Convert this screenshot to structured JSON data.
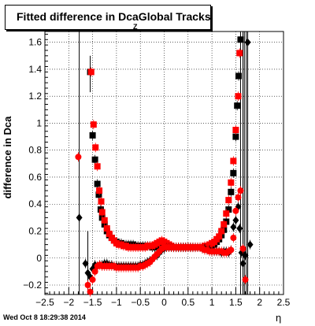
{
  "title": "Fitted difference in DcaGlobal Tracks",
  "title_subscript": "Z",
  "footer": "Wed Oct  8 18:29:38 2014",
  "chart_data": {
    "type": "scatter",
    "title": "Fitted difference in DcaGlobal Tracks",
    "xlabel": "η",
    "ylabel": "difference in Dca",
    "xlim": [
      -2.5,
      2.5
    ],
    "ylim": [
      -0.27,
      1.68
    ],
    "grid": true,
    "x_ticks": [
      -2.5,
      -2,
      -1.5,
      -1,
      -0.5,
      0,
      0.5,
      1,
      1.5,
      2,
      2.5
    ],
    "x_tick_labels": [
      "−2.5",
      "−2",
      "−1.5",
      "−1",
      "−0.5",
      "0",
      "0.5",
      "1",
      "1.5",
      "2",
      "2.5"
    ],
    "y_ticks": [
      -0.2,
      0,
      0.2,
      0.4,
      0.6,
      0.8,
      1,
      1.2,
      1.4,
      1.6
    ],
    "y_tick_labels": [
      "−0.2",
      "0",
      "0.2",
      "0.4",
      "0.6",
      "0.8",
      "1",
      "1.2",
      "1.4",
      "1.6"
    ],
    "series": [
      {
        "marker": "square",
        "color": "#000000",
        "points": [
          [
            -1.55,
            1.38
          ],
          [
            -1.5,
            0.91
          ],
          [
            -1.45,
            0.73
          ],
          [
            -1.4,
            0.55
          ],
          [
            -1.37,
            0.47
          ],
          [
            -1.33,
            0.36
          ],
          [
            -1.3,
            0.3
          ],
          [
            -1.25,
            0.25
          ],
          [
            -1.2,
            0.2
          ],
          [
            -1.15,
            0.17
          ],
          [
            -1.1,
            0.15
          ],
          [
            -1.05,
            0.13
          ],
          [
            -1.0,
            0.12
          ],
          [
            -0.95,
            0.11
          ],
          [
            -0.9,
            0.11
          ],
          [
            -0.85,
            0.1
          ],
          [
            -0.8,
            0.1
          ],
          [
            -0.75,
            0.1
          ],
          [
            -0.7,
            0.1
          ],
          [
            -0.65,
            0.1
          ],
          [
            -0.6,
            0.09
          ],
          [
            -0.55,
            0.09
          ],
          [
            -0.5,
            0.09
          ],
          [
            -0.45,
            0.09
          ],
          [
            -0.4,
            0.09
          ],
          [
            -0.35,
            0.09
          ],
          [
            -0.3,
            0.09
          ],
          [
            -0.25,
            0.08
          ],
          [
            -0.2,
            0.08
          ],
          [
            -0.15,
            0.08
          ],
          [
            -0.1,
            0.08
          ],
          [
            -0.05,
            0.08
          ],
          [
            0.0,
            0.08
          ],
          [
            0.05,
            0.08
          ],
          [
            0.1,
            0.08
          ],
          [
            0.15,
            0.08
          ],
          [
            0.2,
            0.08
          ],
          [
            0.25,
            0.08
          ],
          [
            0.3,
            0.08
          ],
          [
            0.35,
            0.08
          ],
          [
            0.4,
            0.08
          ],
          [
            0.45,
            0.08
          ],
          [
            0.5,
            0.08
          ],
          [
            0.55,
            0.08
          ],
          [
            0.6,
            0.08
          ],
          [
            0.65,
            0.08
          ],
          [
            0.7,
            0.08
          ],
          [
            0.75,
            0.08
          ],
          [
            0.8,
            0.08
          ],
          [
            0.85,
            0.08
          ],
          [
            0.9,
            0.08
          ],
          [
            0.95,
            0.08
          ],
          [
            1.0,
            0.09
          ],
          [
            1.05,
            0.1
          ],
          [
            1.1,
            0.12
          ],
          [
            1.15,
            0.14
          ],
          [
            1.2,
            0.17
          ],
          [
            1.25,
            0.21
          ],
          [
            1.3,
            0.27
          ],
          [
            1.35,
            0.36
          ],
          [
            1.4,
            0.49
          ],
          [
            1.45,
            0.63
          ],
          [
            1.5,
            0.9
          ],
          [
            1.53,
            1.13
          ],
          [
            1.56,
            1.35
          ],
          [
            1.6,
            1.62
          ]
        ]
      },
      {
        "marker": "square",
        "color": "#ff0000",
        "points": [
          [
            -1.53,
            1.38
          ],
          [
            -1.48,
            0.99
          ],
          [
            -1.44,
            0.82
          ],
          [
            -1.4,
            0.68
          ],
          [
            -1.36,
            0.5
          ],
          [
            -1.32,
            0.42
          ],
          [
            -1.3,
            0.34
          ],
          [
            -1.25,
            0.28
          ],
          [
            -1.2,
            0.22
          ],
          [
            -1.15,
            0.18
          ],
          [
            -1.1,
            0.15
          ],
          [
            -1.05,
            0.13
          ],
          [
            -1.0,
            0.11
          ],
          [
            -0.95,
            0.1
          ],
          [
            -0.9,
            0.1
          ],
          [
            -0.85,
            0.09
          ],
          [
            -0.8,
            0.09
          ],
          [
            -0.75,
            0.08
          ],
          [
            -0.7,
            0.08
          ],
          [
            -0.65,
            0.08
          ],
          [
            -0.6,
            0.08
          ],
          [
            -0.55,
            0.08
          ],
          [
            -0.5,
            0.08
          ],
          [
            -0.45,
            0.08
          ],
          [
            -0.4,
            0.08
          ],
          [
            -0.35,
            0.09
          ],
          [
            -0.3,
            0.09
          ],
          [
            -0.25,
            0.09
          ],
          [
            -0.2,
            0.1
          ],
          [
            -0.15,
            0.11
          ],
          [
            -0.1,
            0.12
          ],
          [
            -0.05,
            0.13
          ],
          [
            0.0,
            0.12
          ],
          [
            0.05,
            0.11
          ],
          [
            0.1,
            0.1
          ],
          [
            0.15,
            0.09
          ],
          [
            0.2,
            0.08
          ],
          [
            0.25,
            0.08
          ],
          [
            0.3,
            0.08
          ],
          [
            0.35,
            0.08
          ],
          [
            0.4,
            0.08
          ],
          [
            0.45,
            0.08
          ],
          [
            0.5,
            0.08
          ],
          [
            0.55,
            0.08
          ],
          [
            0.6,
            0.08
          ],
          [
            0.65,
            0.08
          ],
          [
            0.7,
            0.08
          ],
          [
            0.75,
            0.08
          ],
          [
            0.8,
            0.08
          ],
          [
            0.85,
            0.09
          ],
          [
            0.9,
            0.09
          ],
          [
            0.95,
            0.1
          ],
          [
            1.0,
            0.11
          ],
          [
            1.05,
            0.12
          ],
          [
            1.1,
            0.14
          ],
          [
            1.15,
            0.16
          ],
          [
            1.2,
            0.2
          ],
          [
            1.25,
            0.25
          ],
          [
            1.3,
            0.33
          ],
          [
            1.35,
            0.43
          ],
          [
            1.4,
            0.56
          ],
          [
            1.45,
            0.72
          ],
          [
            1.5,
            0.95
          ],
          [
            1.55,
            1.2
          ],
          [
            1.58,
            1.52
          ]
        ]
      },
      {
        "marker": "diamond",
        "color": "#000000",
        "points": [
          [
            -1.78,
            0.3
          ],
          [
            -1.65,
            -0.04
          ],
          [
            -1.6,
            -0.11
          ],
          [
            -1.55,
            -0.14
          ],
          [
            -1.5,
            -0.08
          ],
          [
            -1.45,
            -0.05
          ],
          [
            -1.4,
            -0.06
          ],
          [
            -1.35,
            -0.05
          ],
          [
            -1.3,
            -0.05
          ],
          [
            -1.25,
            -0.04
          ],
          [
            -1.2,
            -0.04
          ],
          [
            -1.15,
            -0.05
          ],
          [
            -1.1,
            -0.05
          ],
          [
            -1.05,
            -0.06
          ],
          [
            -1.0,
            -0.06
          ],
          [
            -0.95,
            -0.06
          ],
          [
            -0.9,
            -0.06
          ],
          [
            -0.85,
            -0.06
          ],
          [
            -0.8,
            -0.06
          ],
          [
            -0.75,
            -0.06
          ],
          [
            -0.7,
            -0.06
          ],
          [
            -0.65,
            -0.06
          ],
          [
            -0.6,
            -0.06
          ],
          [
            -0.55,
            -0.06
          ],
          [
            -0.5,
            -0.05
          ],
          [
            -0.45,
            -0.05
          ],
          [
            -0.4,
            -0.04
          ],
          [
            -0.35,
            -0.03
          ],
          [
            -0.3,
            -0.02
          ],
          [
            -0.25,
            -0.01
          ],
          [
            -0.2,
            0.01
          ],
          [
            -0.15,
            0.02
          ],
          [
            -0.1,
            0.04
          ],
          [
            -0.05,
            0.06
          ],
          [
            0.0,
            0.07
          ],
          [
            0.05,
            0.08
          ],
          [
            0.1,
            0.08
          ],
          [
            0.15,
            0.08
          ],
          [
            0.2,
            0.08
          ],
          [
            0.25,
            0.08
          ],
          [
            0.3,
            0.08
          ],
          [
            0.35,
            0.08
          ],
          [
            0.4,
            0.08
          ],
          [
            0.45,
            0.08
          ],
          [
            0.5,
            0.08
          ],
          [
            0.55,
            0.08
          ],
          [
            0.6,
            0.08
          ],
          [
            0.65,
            0.08
          ],
          [
            0.7,
            0.08
          ],
          [
            0.75,
            0.08
          ],
          [
            0.8,
            0.07
          ],
          [
            0.85,
            0.07
          ],
          [
            0.9,
            0.06
          ],
          [
            0.95,
            0.06
          ],
          [
            1.0,
            0.05
          ],
          [
            1.05,
            0.05
          ],
          [
            1.1,
            0.05
          ],
          [
            1.15,
            0.05
          ],
          [
            1.2,
            0.04
          ],
          [
            1.25,
            0.05
          ],
          [
            1.3,
            0.05
          ],
          [
            1.35,
            0.04
          ],
          [
            1.4,
            0.06
          ],
          [
            1.45,
            0.23
          ],
          [
            1.5,
            0.28
          ],
          [
            1.55,
            0.38
          ],
          [
            1.58,
            0.22
          ],
          [
            1.62,
            0.04
          ],
          [
            1.65,
            -0.04
          ],
          [
            1.7,
            0.02
          ],
          [
            1.75,
            1.6
          ],
          [
            1.8,
            0.1
          ]
        ]
      },
      {
        "marker": "circle",
        "color": "#ff0000",
        "points": [
          [
            -1.8,
            0.75
          ],
          [
            -1.6,
            -0.2
          ],
          [
            -1.55,
            -0.25
          ],
          [
            -1.5,
            -0.16
          ],
          [
            -1.45,
            -0.1
          ],
          [
            -1.4,
            -0.06
          ],
          [
            -1.35,
            -0.05
          ],
          [
            -1.3,
            -0.06
          ],
          [
            -1.25,
            -0.06
          ],
          [
            -1.2,
            -0.06
          ],
          [
            -1.15,
            -0.06
          ],
          [
            -1.1,
            -0.06
          ],
          [
            -1.05,
            -0.06
          ],
          [
            -1.0,
            -0.07
          ],
          [
            -0.95,
            -0.07
          ],
          [
            -0.9,
            -0.07
          ],
          [
            -0.85,
            -0.07
          ],
          [
            -0.8,
            -0.07
          ],
          [
            -0.75,
            -0.07
          ],
          [
            -0.7,
            -0.07
          ],
          [
            -0.65,
            -0.07
          ],
          [
            -0.6,
            -0.07
          ],
          [
            -0.55,
            -0.07
          ],
          [
            -0.5,
            -0.06
          ],
          [
            -0.45,
            -0.06
          ],
          [
            -0.4,
            -0.05
          ],
          [
            -0.35,
            -0.04
          ],
          [
            -0.3,
            -0.03
          ],
          [
            -0.25,
            -0.01
          ],
          [
            -0.2,
            0.01
          ],
          [
            -0.15,
            0.03
          ],
          [
            -0.1,
            0.05
          ],
          [
            -0.05,
            0.07
          ],
          [
            0.0,
            0.08
          ],
          [
            0.05,
            0.08
          ],
          [
            0.1,
            0.08
          ],
          [
            0.15,
            0.08
          ],
          [
            0.2,
            0.08
          ],
          [
            0.25,
            0.08
          ],
          [
            0.3,
            0.08
          ],
          [
            0.35,
            0.08
          ],
          [
            0.4,
            0.08
          ],
          [
            0.45,
            0.08
          ],
          [
            0.5,
            0.08
          ],
          [
            0.55,
            0.08
          ],
          [
            0.6,
            0.08
          ],
          [
            0.65,
            0.08
          ],
          [
            0.7,
            0.08
          ],
          [
            0.75,
            0.08
          ],
          [
            0.8,
            0.07
          ],
          [
            0.85,
            0.06
          ],
          [
            0.9,
            0.06
          ],
          [
            0.95,
            0.05
          ],
          [
            1.0,
            0.05
          ],
          [
            1.05,
            0.05
          ],
          [
            1.1,
            0.05
          ],
          [
            1.15,
            0.05
          ],
          [
            1.2,
            0.05
          ],
          [
            1.25,
            0.04
          ],
          [
            1.3,
            0.04
          ],
          [
            1.35,
            0.05
          ],
          [
            1.4,
            0.06
          ],
          [
            1.45,
            0.15
          ],
          [
            1.5,
            0.35
          ],
          [
            1.55,
            0.45
          ],
          [
            1.6,
            0.5
          ],
          [
            1.65,
            0.07
          ],
          [
            1.7,
            -0.16
          ]
        ]
      }
    ],
    "outlier_error_bars": [
      {
        "x": -1.78,
        "low": -0.27,
        "high": 1.68
      },
      {
        "x": -1.55,
        "low": 1.23,
        "high": 1.5
      },
      {
        "x": -1.6,
        "low": -0.27,
        "high": 0.2
      },
      {
        "x": 1.75,
        "low": -0.27,
        "high": 1.68
      },
      {
        "x": 1.72,
        "low": -0.27,
        "high": 1.68
      },
      {
        "x": 1.68,
        "low": -0.27,
        "high": 1.68
      },
      {
        "x": 1.65,
        "low": -0.27,
        "high": 1.68
      },
      {
        "x": 1.6,
        "low": -0.27,
        "high": 1.68
      }
    ]
  }
}
